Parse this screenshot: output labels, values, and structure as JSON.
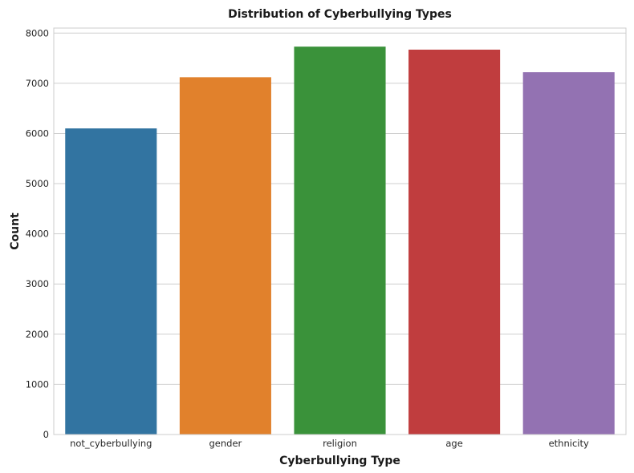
{
  "chart_data": {
    "type": "bar",
    "title": "Distribution of Cyberbullying Types",
    "xlabel": "Cyberbullying Type",
    "ylabel": "Count",
    "categories": [
      "not_cyberbullying",
      "gender",
      "religion",
      "age",
      "ethnicity"
    ],
    "values": [
      6100,
      7120,
      7730,
      7670,
      7220
    ],
    "colors": [
      "#3274a1",
      "#e1812c",
      "#3a923a",
      "#c03d3e",
      "#9372b2"
    ],
    "ylim": [
      0,
      8100
    ],
    "yticks": [
      0,
      1000,
      2000,
      3000,
      4000,
      5000,
      6000,
      7000,
      8000
    ],
    "grid": "horizontal",
    "legend": "none"
  }
}
